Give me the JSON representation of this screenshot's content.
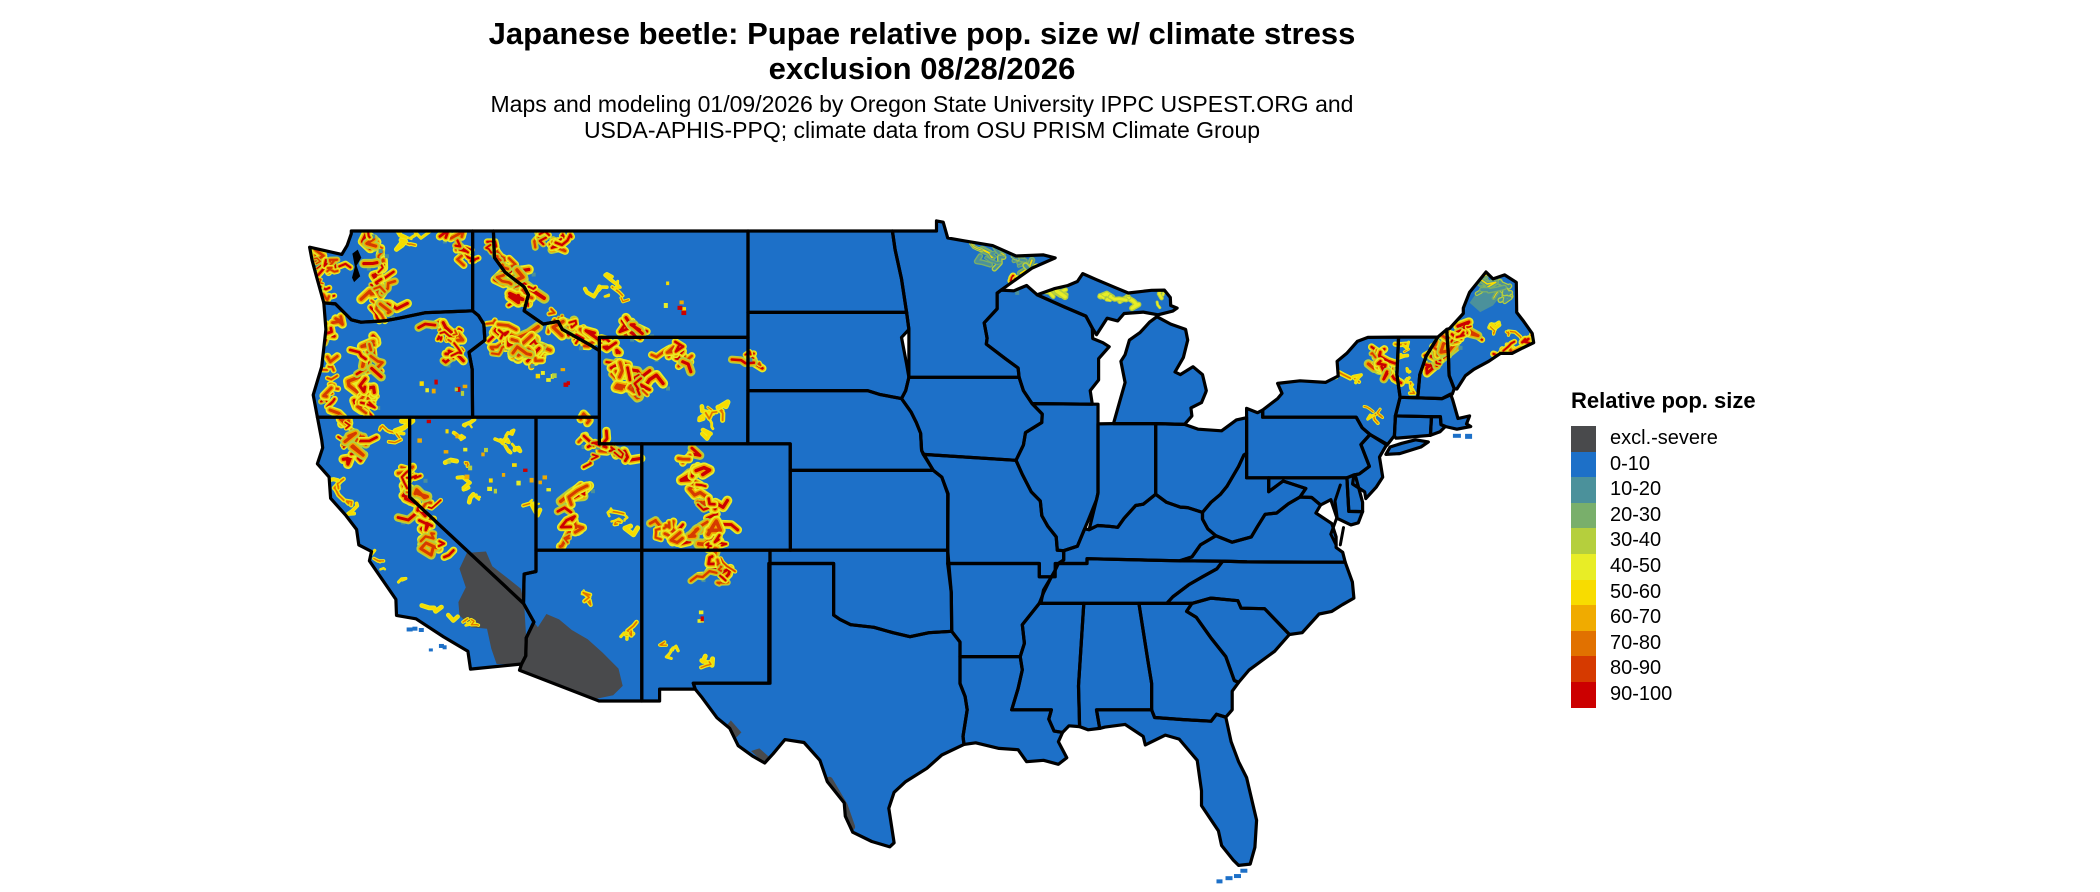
{
  "header": {
    "title_line1": "Japanese beetle: Pupae relative pop. size w/ climate stress",
    "title_line2": "exclusion 08/28/2026",
    "subtitle_line1": "Maps and modeling 01/09/2026 by Oregon State University IPPC USPEST.ORG and",
    "subtitle_line2": "USDA-APHIS-PPQ; climate data from OSU PRISM Climate Group"
  },
  "legend": {
    "title": "Relative pop. size",
    "items": [
      {
        "label": "excl.-severe",
        "color": "#494a4c"
      },
      {
        "label": "0-10",
        "color": "#1d70c8"
      },
      {
        "label": "10-20",
        "color": "#4b919b"
      },
      {
        "label": "20-30",
        "color": "#79af6b"
      },
      {
        "label": "30-40",
        "color": "#b5cf3d"
      },
      {
        "label": "40-50",
        "color": "#e8ed26"
      },
      {
        "label": "50-60",
        "color": "#f8dc00"
      },
      {
        "label": "60-70",
        "color": "#f0ab00"
      },
      {
        "label": "70-80",
        "color": "#e17100"
      },
      {
        "label": "80-90",
        "color": "#d63a00"
      },
      {
        "label": "90-100",
        "color": "#cc0000"
      }
    ]
  },
  "map": {
    "area": "Contiguous United States",
    "dominant_category": "0-10",
    "excluded_category": "excl.-severe",
    "border_color": "#000000",
    "background_color": "#ffffff"
  }
}
